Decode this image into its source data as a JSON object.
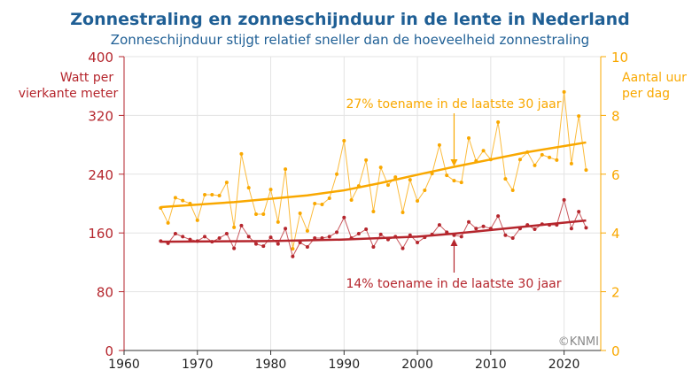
{
  "colors": {
    "title": "#1f5f95",
    "red": "#b5262d",
    "red_light": "#c9575c",
    "orange": "#f9a800",
    "orange_light": "#fbbb3c",
    "grid": "#e3e3e3",
    "credit": "#8a8a8a"
  },
  "chart_data": {
    "type": "line",
    "title": "Zonnestraling en zonneschijnduur in de lente in Nederland",
    "subtitle": "Zonneschijnduur stijgt relatief sneller dan de hoeveelheid zonnestraling",
    "ylabel_left": [
      "Watt per",
      "vierkante meter"
    ],
    "ylabel_right": [
      "Aantal uur",
      "per dag"
    ],
    "xlim": [
      1960,
      2025
    ],
    "ylim_left": [
      0,
      400
    ],
    "ylim_right": [
      0,
      10
    ],
    "xticks": [
      1960,
      1970,
      1980,
      1990,
      2000,
      2010,
      2020
    ],
    "yticks_left": [
      0,
      80,
      160,
      240,
      320,
      400
    ],
    "yticks_right": [
      0,
      2,
      4,
      6,
      8,
      10
    ],
    "grid": true,
    "credit": "©KNMI",
    "annotations": {
      "orange": "27% toename in de laatste 30 jaar",
      "red": "14% toename in de laatste 30 jaar",
      "year": 2005
    },
    "years_start": 1965,
    "series": [
      {
        "axis": "right",
        "values": [
          4.85,
          4.34,
          5.2,
          5.1,
          5.0,
          4.43,
          5.3,
          5.3,
          5.27,
          5.72,
          4.19,
          6.69,
          5.54,
          4.64,
          4.64,
          5.48,
          4.37,
          6.17,
          3.46,
          4.67,
          4.07,
          5.0,
          4.97,
          5.18,
          6.0,
          7.14,
          5.12,
          5.6,
          6.48,
          4.73,
          6.23,
          5.63,
          5.9,
          4.7,
          5.81,
          5.09,
          5.45,
          6.02,
          6.99,
          5.96,
          5.78,
          5.72,
          7.23,
          6.45,
          6.8,
          6.5,
          7.77,
          5.84,
          5.45,
          6.5,
          6.75,
          6.3,
          6.66,
          6.57,
          6.48,
          8.8,
          6.36,
          7.98,
          6.14
        ],
        "trend": [
          [
            1965,
            4.88
          ],
          [
            1975,
            5.05
          ],
          [
            1985,
            5.28
          ],
          [
            1990,
            5.45
          ],
          [
            1995,
            5.7
          ],
          [
            2000,
            5.98
          ],
          [
            2005,
            6.25
          ],
          [
            2010,
            6.5
          ],
          [
            2015,
            6.75
          ],
          [
            2023,
            7.08
          ]
        ]
      },
      {
        "axis": "left",
        "values": [
          149,
          146,
          159,
          155,
          151,
          149,
          155,
          148,
          153,
          159,
          139,
          170,
          155,
          145,
          142,
          154,
          145,
          166,
          128,
          147,
          141,
          153,
          153,
          155,
          161,
          181,
          153,
          159,
          165,
          141,
          158,
          151,
          155,
          139,
          157,
          147,
          154,
          158,
          171,
          161,
          157,
          155,
          175,
          166,
          169,
          166,
          183,
          157,
          153,
          166,
          171,
          165,
          172,
          171,
          171,
          205,
          166,
          189,
          167
        ],
        "trend": [
          [
            1965,
            148
          ],
          [
            1980,
            149
          ],
          [
            1990,
            151
          ],
          [
            2000,
            155
          ],
          [
            2005,
            159
          ],
          [
            2010,
            164
          ],
          [
            2015,
            169
          ],
          [
            2023,
            177
          ]
        ]
      }
    ]
  }
}
